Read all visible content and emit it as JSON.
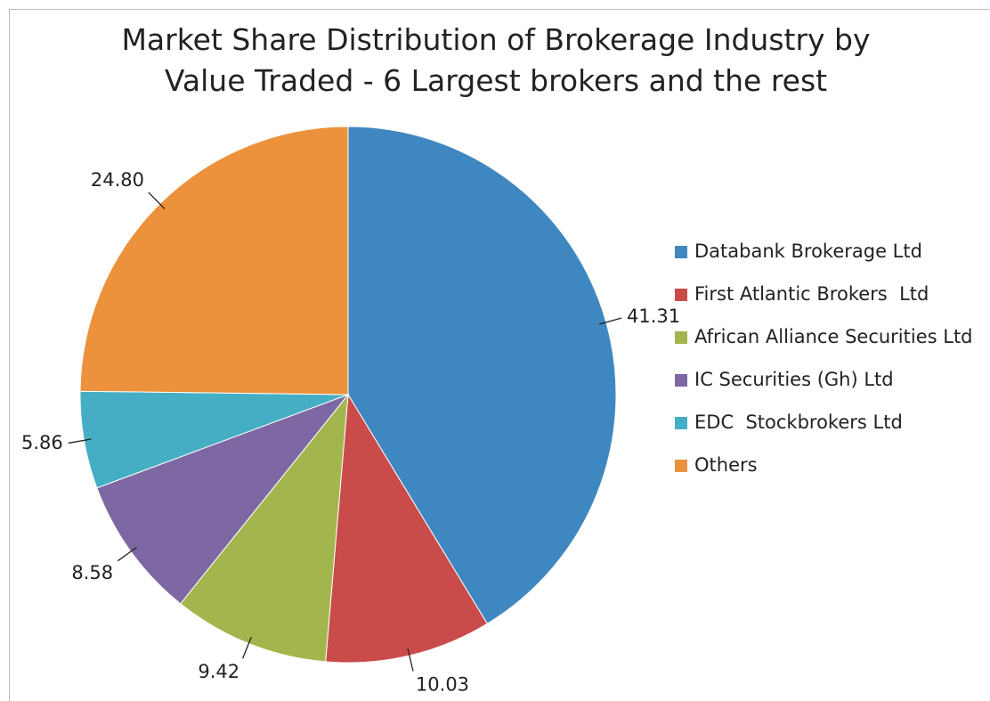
{
  "chart_data": {
    "type": "pie",
    "title": "Market Share Distribution of Brokerage Industry by Value Traded - 6 Largest brokers and the rest",
    "categories": [
      "Databank Brokerage Ltd",
      "First Atlantic Brokers  Ltd",
      "African Alliance Securities Ltd",
      "IC Securities (Gh) Ltd",
      "EDC  Stockbrokers Ltd",
      "Others"
    ],
    "values": [
      41.31,
      10.03,
      9.42,
      8.58,
      5.86,
      24.8
    ],
    "value_labels": [
      "41.31",
      "10.03",
      "9.42",
      "8.58",
      "5.86",
      "24.80"
    ],
    "colors": [
      "#3f87c0",
      "#c94c4a",
      "#a3b64e",
      "#7d68a3",
      "#45aec4",
      "#ec923c"
    ],
    "legend": "right"
  }
}
